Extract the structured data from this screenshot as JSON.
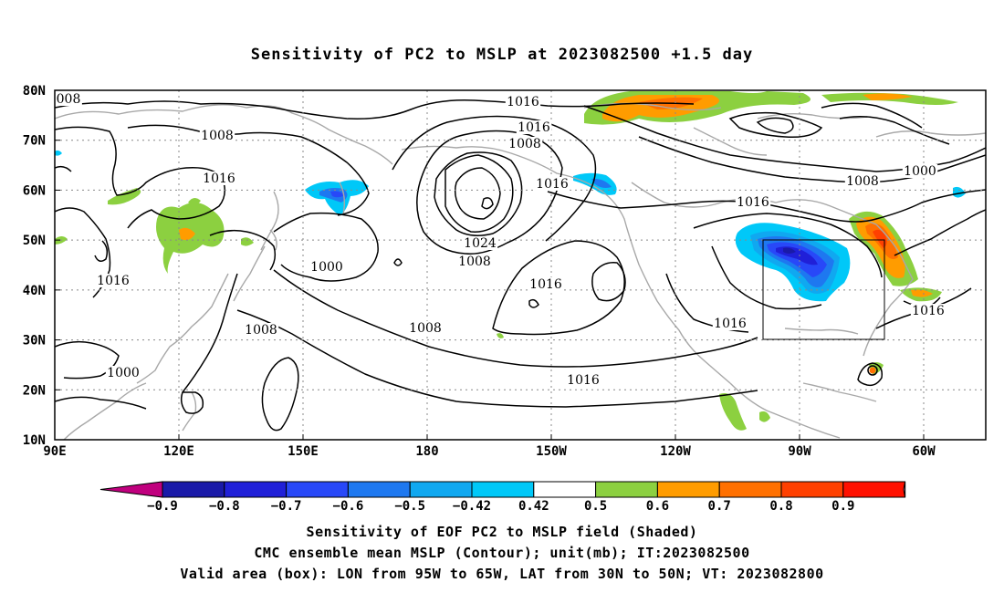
{
  "title": "Sensitivity of PC2 to MSLP at 2023082500 +1.5 day",
  "map": {
    "lat_labels": [
      "80N",
      "70N",
      "60N",
      "50N",
      "40N",
      "30N",
      "20N",
      "10N"
    ],
    "lon_labels": [
      "90E",
      "120E",
      "150E",
      "180",
      "150W",
      "120W",
      "90W",
      "60W"
    ],
    "contour_labels": [
      "008",
      "1016",
      "1016",
      "1008",
      "1008",
      "1016",
      "1016",
      "1000",
      "1008",
      "1024",
      "1008",
      "1016",
      "1016",
      "1000",
      "1008",
      "1016",
      "1008",
      "1016",
      "1000",
      "1016",
      "1016"
    ],
    "valid_box": {
      "lon": [
        "95W",
        "65W"
      ],
      "lat": [
        "30N",
        "50N"
      ]
    }
  },
  "colorbar": {
    "colors": [
      "#c0007e",
      "#1a1aa8",
      "#2020d8",
      "#2848f8",
      "#1e78f0",
      "#10a8f0",
      "#00c8f8",
      "#ffffff",
      "#8cd040",
      "#ff9c00",
      "#ff7000",
      "#ff4000",
      "#ff1000",
      "#f090c0"
    ],
    "labels": [
      "-0.9",
      "-0.8",
      "-0.7",
      "-0.6",
      "-0.5",
      "-0.42",
      "0.42",
      "0.5",
      "0.6",
      "0.7",
      "0.8",
      "0.9"
    ]
  },
  "captions": {
    "line1": "Sensitivity of EOF PC2 to MSLP field (Shaded)",
    "line2": "CMC ensemble mean MSLP (Contour); unit(mb); IT:2023082500",
    "line3": "Valid area (box): LON from 95W to 65W, LAT from 30N to 50N; VT: 2023082800"
  }
}
